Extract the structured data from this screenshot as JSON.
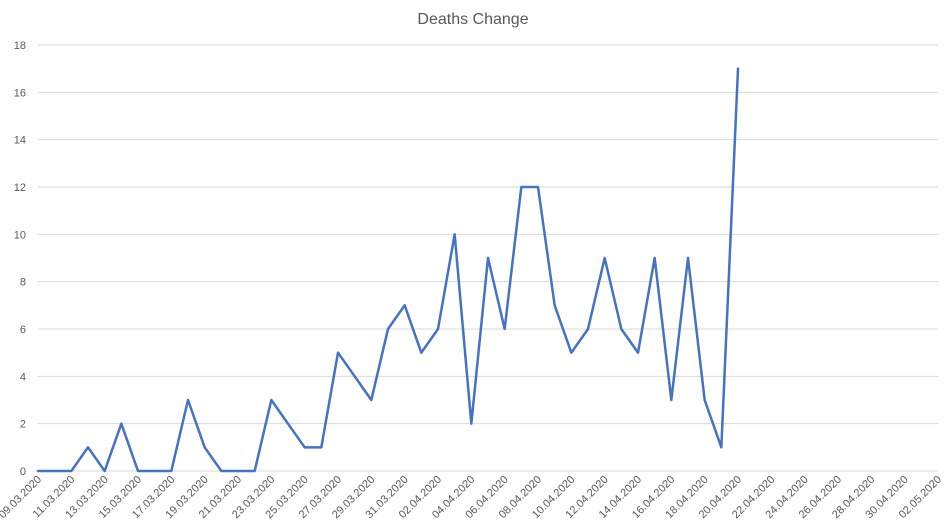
{
  "chart_data": {
    "type": "line",
    "title": "Deaths Change",
    "xlabel": "",
    "ylabel": "",
    "ylim": [
      0,
      18
    ],
    "y_ticks": [
      0,
      2,
      4,
      6,
      8,
      10,
      12,
      14,
      16,
      18
    ],
    "grid": true,
    "legend": "none",
    "x_start_date": "09.03.2020",
    "x_tick_labels": [
      "09.03.2020",
      "11.03.2020",
      "13.03.2020",
      "15.03.2020",
      "17.03.2020",
      "19.03.2020",
      "21.03.2020",
      "23.03.2020",
      "25.03.2020",
      "27.03.2020",
      "29.03.2020",
      "31.03.2020",
      "02.04.2020",
      "04.04.2020",
      "06.04.2020",
      "08.04.2020",
      "10.04.2020",
      "12.04.2020",
      "14.04.2020",
      "16.04.2020",
      "18.04.2020",
      "20.04.2020",
      "22.04.2020",
      "24.04.2020",
      "26.04.2020",
      "28.04.2020",
      "30.04.2020",
      "02.05.2020"
    ],
    "x_end_date": "02.05.2020",
    "series": [
      {
        "color": "#4472c4",
        "x": [
          "09.03.2020",
          "10.03.2020",
          "11.03.2020",
          "12.03.2020",
          "13.03.2020",
          "14.03.2020",
          "15.03.2020",
          "16.03.2020",
          "17.03.2020",
          "18.03.2020",
          "19.03.2020",
          "20.03.2020",
          "21.03.2020",
          "22.03.2020",
          "23.03.2020",
          "24.03.2020",
          "25.03.2020",
          "26.03.2020",
          "27.03.2020",
          "28.03.2020",
          "29.03.2020",
          "30.03.2020",
          "31.03.2020",
          "01.04.2020",
          "02.04.2020",
          "03.04.2020",
          "04.04.2020",
          "05.04.2020",
          "06.04.2020",
          "07.04.2020",
          "08.04.2020",
          "09.04.2020",
          "10.04.2020",
          "11.04.2020",
          "12.04.2020",
          "13.04.2020",
          "14.04.2020",
          "15.04.2020",
          "16.04.2020",
          "17.04.2020",
          "18.04.2020",
          "19.04.2020",
          "20.04.2020"
        ],
        "values": [
          0,
          0,
          0,
          1,
          0,
          2,
          0,
          0,
          0,
          3,
          1,
          0,
          0,
          0,
          3,
          2,
          1,
          1,
          5,
          4,
          3,
          6,
          7,
          5,
          6,
          10,
          2,
          9,
          6,
          12,
          12,
          7,
          5,
          6,
          9,
          6,
          5,
          9,
          3,
          9,
          3,
          1,
          17
        ]
      }
    ]
  }
}
